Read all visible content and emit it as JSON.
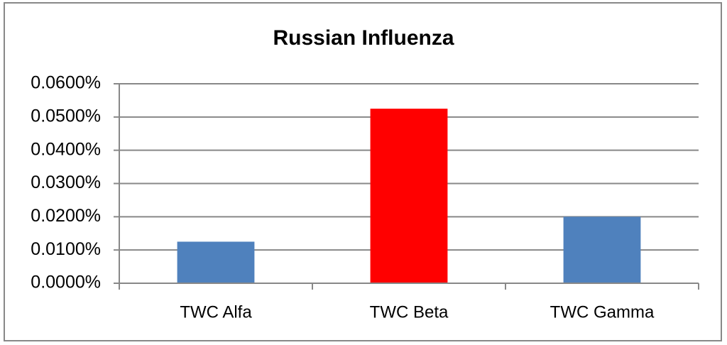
{
  "chart_data": {
    "type": "bar",
    "title": "Russian Influenza",
    "categories": [
      "TWC Alfa",
      "TWC Beta",
      "TWC Gamma"
    ],
    "values": [
      0.0125,
      0.0525,
      0.02
    ],
    "colors": [
      "#4f81bd",
      "#ff0000",
      "#4f81bd"
    ],
    "ylim": [
      0,
      0.06
    ],
    "yticks": [
      {
        "value": 0,
        "label": "0.0000%"
      },
      {
        "value": 0.01,
        "label": "0.0100%"
      },
      {
        "value": 0.02,
        "label": "0.0200%"
      },
      {
        "value": 0.03,
        "label": "0.0300%"
      },
      {
        "value": 0.04,
        "label": "0.0400%"
      },
      {
        "value": 0.05,
        "label": "0.0500%"
      },
      {
        "value": 0.06,
        "label": "0.0600%"
      }
    ],
    "grid": true
  }
}
